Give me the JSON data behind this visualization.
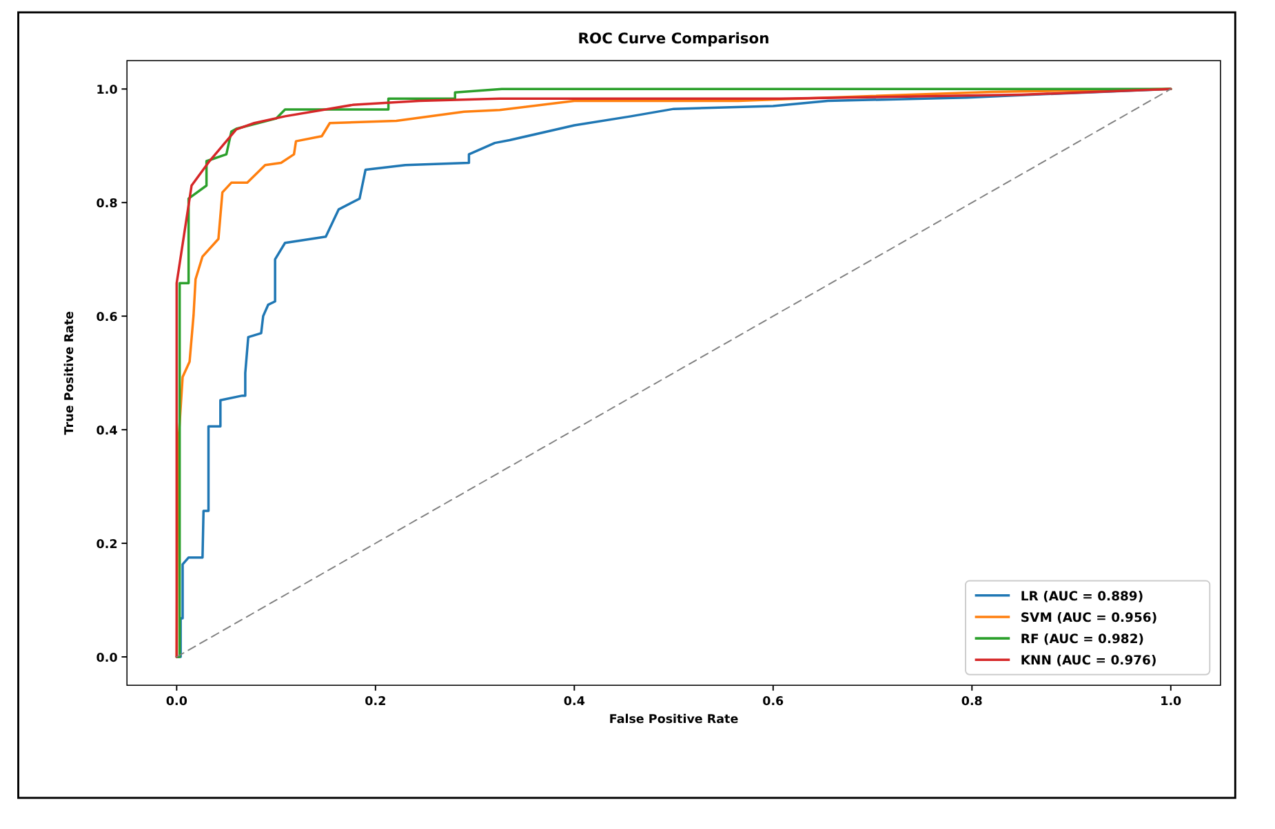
{
  "chart_data": {
    "type": "line",
    "title": "ROC Curve Comparison",
    "xlabel": "False Positive Rate",
    "ylabel": "True Positive Rate",
    "xlim": [
      -0.05,
      1.05
    ],
    "ylim": [
      -0.05,
      1.05
    ],
    "xticks": [
      {
        "value": 0,
        "label": "0.0"
      },
      {
        "value": 0.2,
        "label": "0.2"
      },
      {
        "value": 0.4,
        "label": "0.4"
      },
      {
        "value": 0.6,
        "label": "0.6"
      },
      {
        "value": 0.8,
        "label": "0.8"
      },
      {
        "value": 1,
        "label": "1.0"
      }
    ],
    "yticks": [
      {
        "value": 0,
        "label": "0.0"
      },
      {
        "value": 0.2,
        "label": "0.2"
      },
      {
        "value": 0.4,
        "label": "0.4"
      },
      {
        "value": 0.6,
        "label": "0.6"
      },
      {
        "value": 0.8,
        "label": "0.8"
      },
      {
        "value": 1,
        "label": "1.0"
      }
    ],
    "grid": false,
    "legend": "bottom right",
    "marker": "none",
    "series": [
      {
        "name": "LR (AUC = 0.889)",
        "color": "#1f77b4",
        "x": [
          0,
          0.004,
          0.004,
          0.006,
          0.006,
          0.012,
          0.026,
          0.027,
          0.032,
          0.032,
          0.044,
          0.044,
          0.066,
          0.069,
          0.069,
          0.072,
          0.085,
          0.087,
          0.092,
          0.099,
          0.099,
          0.109,
          0.15,
          0.163,
          0.184,
          0.19,
          0.23,
          0.294,
          0.294,
          0.32,
          0.335,
          0.4,
          0.457,
          0.5,
          0.6,
          0.655,
          0.795,
          0.86,
          1
        ],
        "values": [
          0,
          0,
          0.068,
          0.068,
          0.163,
          0.175,
          0.175,
          0.257,
          0.257,
          0.406,
          0.406,
          0.452,
          0.46,
          0.46,
          0.5,
          0.563,
          0.57,
          0.6,
          0.62,
          0.626,
          0.7,
          0.729,
          0.74,
          0.788,
          0.807,
          0.858,
          0.866,
          0.87,
          0.885,
          0.905,
          0.91,
          0.936,
          0.952,
          0.965,
          0.97,
          0.979,
          0.985,
          0.99,
          1
        ]
      },
      {
        "name": "SVM (AUC = 0.956)",
        "color": "#ff7f0e",
        "x": [
          0,
          0.001,
          0.006,
          0.013,
          0.017,
          0.019,
          0.026,
          0.042,
          0.046,
          0.055,
          0.071,
          0.089,
          0.105,
          0.118,
          0.12,
          0.146,
          0.154,
          0.221,
          0.289,
          0.325,
          0.4,
          0.565,
          0.655,
          0.82,
          1
        ],
        "values": [
          0,
          0.358,
          0.493,
          0.52,
          0.602,
          0.665,
          0.705,
          0.736,
          0.818,
          0.835,
          0.835,
          0.866,
          0.87,
          0.885,
          0.908,
          0.917,
          0.94,
          0.944,
          0.96,
          0.963,
          0.979,
          0.979,
          0.985,
          0.995,
          1
        ]
      },
      {
        "name": "RF (AUC = 0.982)",
        "color": "#2ca02c",
        "x": [
          0,
          0.003,
          0.003,
          0.012,
          0.012,
          0.03,
          0.03,
          0.05,
          0.055,
          0.06,
          0.1,
          0.109,
          0.213,
          0.213,
          0.28,
          0.28,
          0.327,
          1
        ],
        "values": [
          0,
          0,
          0.658,
          0.658,
          0.807,
          0.83,
          0.873,
          0.885,
          0.925,
          0.93,
          0.948,
          0.964,
          0.964,
          0.983,
          0.983,
          0.994,
          1,
          1
        ]
      },
      {
        "name": "KNN (AUC = 0.976)",
        "color": "#d62728",
        "x": [
          0,
          0,
          0.015,
          0.033,
          0.06,
          0.078,
          0.109,
          0.177,
          0.244,
          0.325,
          0.607,
          0.85,
          1
        ],
        "values": [
          0,
          0.658,
          0.83,
          0.873,
          0.929,
          0.94,
          0.952,
          0.972,
          0.979,
          0.983,
          0.983,
          0.99,
          1
        ]
      },
      {
        "color": "#808080",
        "line_style": "dashed",
        "x": [
          0,
          1
        ],
        "values": [
          0,
          1
        ]
      }
    ]
  }
}
